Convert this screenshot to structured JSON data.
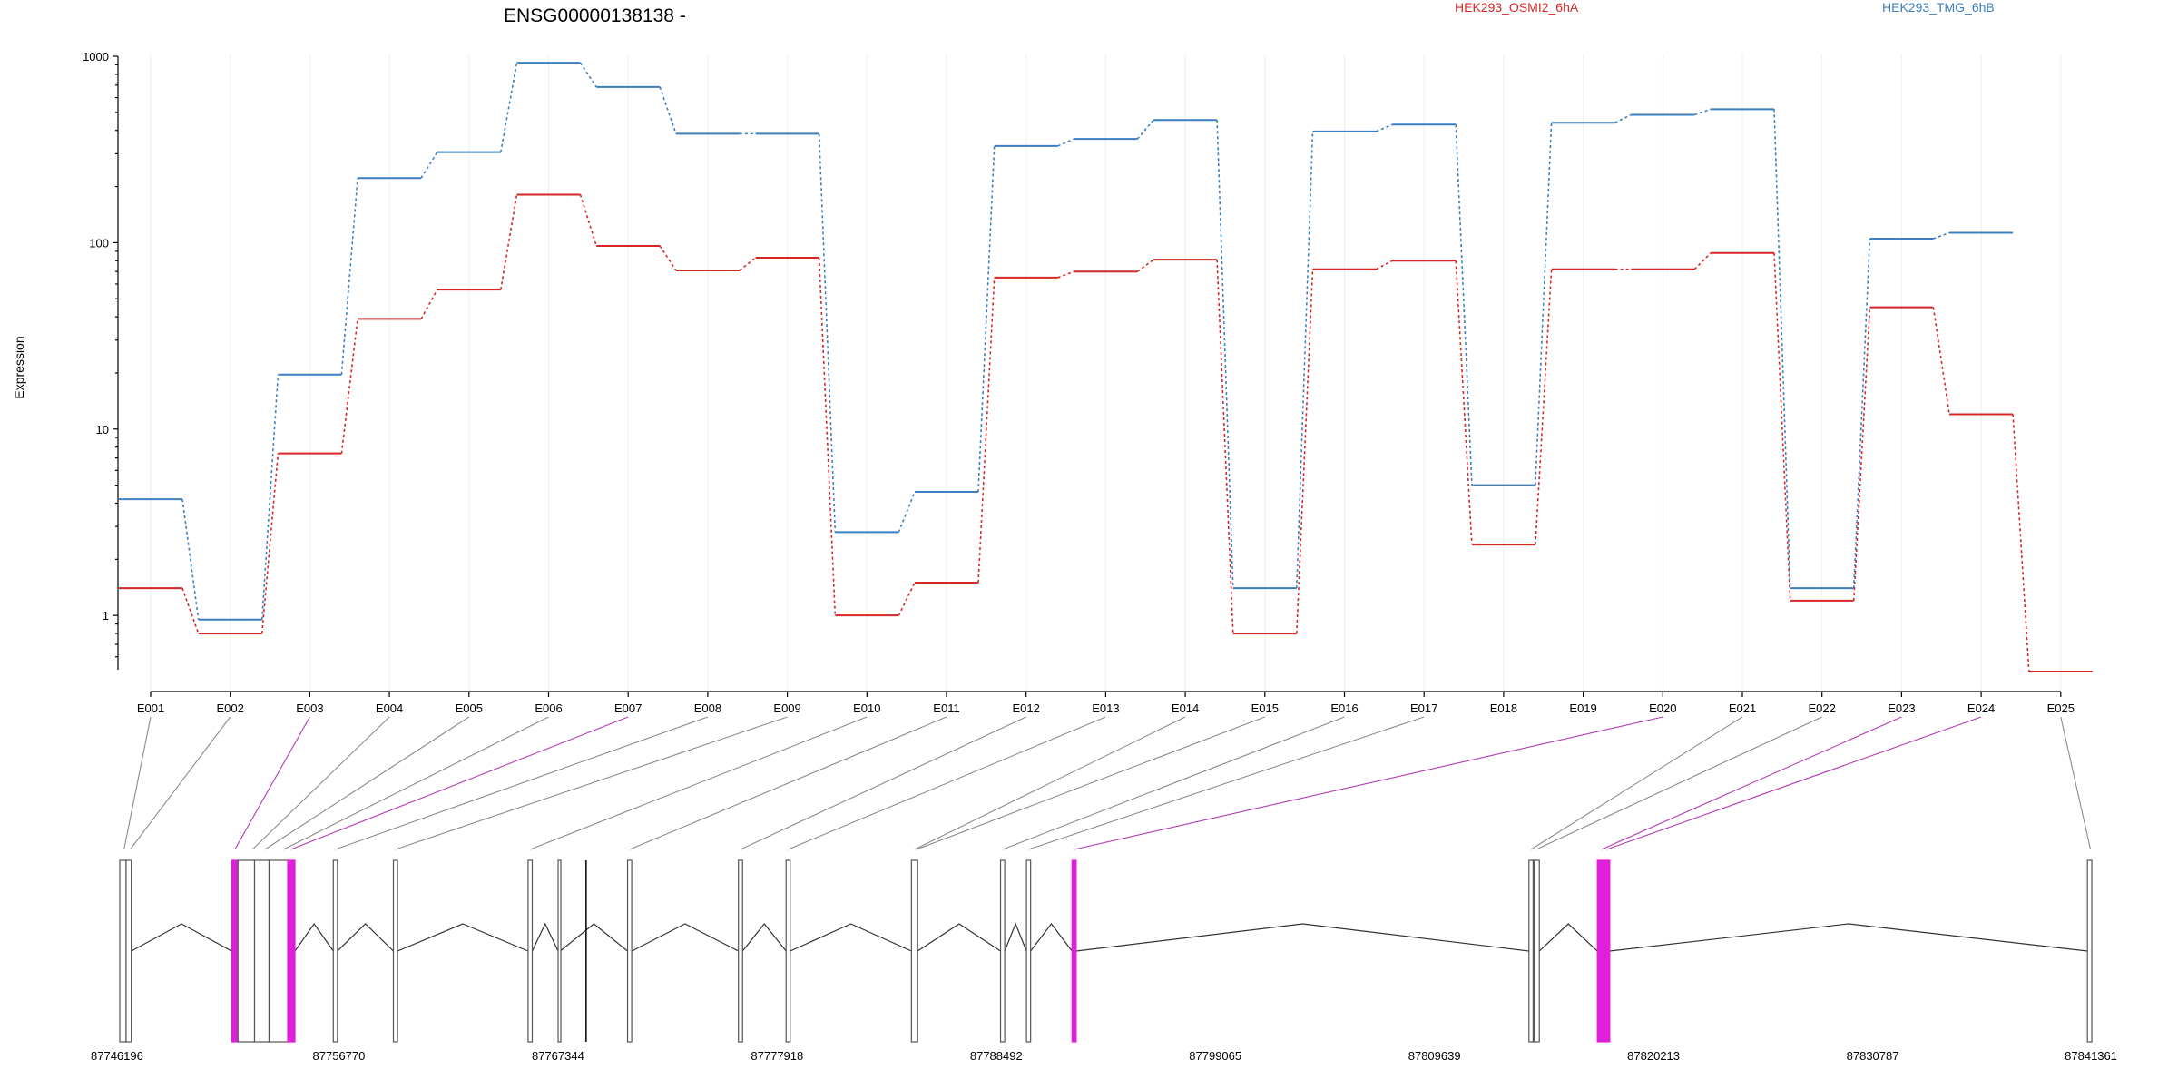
{
  "chart_data": {
    "type": "line",
    "title": "ENSG00000138138 -",
    "xlabel": "",
    "ylabel": "Expression",
    "y_scale": "log",
    "ylim": [
      0.5,
      1000
    ],
    "y_ticks": [
      {
        "value": 1,
        "label": "1"
      },
      {
        "value": 10,
        "label": "10"
      },
      {
        "value": 100,
        "label": "100"
      },
      {
        "value": 1000,
        "label": "1000"
      }
    ],
    "categories": [
      "E001",
      "E002",
      "E003",
      "E004",
      "E005",
      "E006",
      "E007",
      "E008",
      "E009",
      "E010",
      "E011",
      "E012",
      "E013",
      "E014",
      "E015",
      "E016",
      "E017",
      "E018",
      "E019",
      "E020",
      "E021",
      "E022",
      "E023",
      "E024",
      "E025"
    ],
    "series": [
      {
        "name": "HEK293_OSMI2_6hA",
        "color": "#d62728",
        "values": [
          1.4,
          0.8,
          7.4,
          39,
          56,
          181,
          96,
          71,
          83,
          1.0,
          1.5,
          65,
          70,
          81,
          0.8,
          72,
          80,
          2.4,
          72,
          72,
          88,
          1.2,
          45,
          12,
          0.5
        ]
      },
      {
        "name": "HEK293_TMG_6hB",
        "color": "#3b7fbf",
        "values": [
          4.2,
          0.95,
          19.6,
          222,
          306,
          923,
          684,
          384,
          384,
          2.8,
          4.6,
          330,
          360,
          455,
          1.4,
          395,
          430,
          5.0,
          440,
          485,
          520,
          1.4,
          105,
          113,
          null
        ]
      }
    ],
    "legend_position": "top-right",
    "gene_model": {
      "coordinates": [
        "87746196",
        "87756770",
        "87767344",
        "87777918",
        "87788492",
        "87799065",
        "87809639",
        "87820213",
        "87830787",
        "87841361"
      ],
      "exons": [
        {
          "id": "E001",
          "start": 87746196,
          "end": 87746500,
          "highlight": false
        },
        {
          "id": "E002",
          "start": 87746500,
          "end": 87746750,
          "highlight": false
        },
        {
          "id": "E003",
          "start": 87751600,
          "end": 87751900,
          "highlight": true
        },
        {
          "id": "E004",
          "start": 87751900,
          "end": 87752700,
          "highlight": false
        },
        {
          "id": "E005",
          "start": 87752700,
          "end": 87753400,
          "highlight": false
        },
        {
          "id": "E006",
          "start": 87753400,
          "end": 87754300,
          "highlight": false
        },
        {
          "id": "E007",
          "start": 87754300,
          "end": 87754650,
          "highlight": true
        },
        {
          "id": "E008",
          "start": 87756500,
          "end": 87756700,
          "highlight": false
        },
        {
          "id": "E009",
          "start": 87759400,
          "end": 87759600,
          "highlight": false
        },
        {
          "id": "E010",
          "start": 87765900,
          "end": 87766100,
          "highlight": false
        },
        {
          "id": "E011",
          "start": 87767350,
          "end": 87767450,
          "highlight": false
        },
        {
          "id": "E012",
          "start": 87770700,
          "end": 87770900,
          "highlight": false
        },
        {
          "id": "E013",
          "start": 87776050,
          "end": 87776250,
          "highlight": false
        },
        {
          "id": "E014",
          "start": 87778350,
          "end": 87778550,
          "highlight": false
        },
        {
          "id": "E015",
          "start": 87784400,
          "end": 87784700,
          "highlight": false
        },
        {
          "id": "E016",
          "start": 87788700,
          "end": 87788900,
          "highlight": false
        },
        {
          "id": "E017",
          "start": 87789950,
          "end": 87790150,
          "highlight": false
        },
        {
          "id": "E018",
          "start": 87792150,
          "end": 87792350,
          "highlight": true
        },
        {
          "id": "E019",
          "start": 87814200,
          "end": 87814400,
          "highlight": false
        },
        {
          "id": "E020",
          "start": 87814450,
          "end": 87814700,
          "highlight": false
        },
        {
          "id": "E021",
          "start": 87817500,
          "end": 87817850,
          "highlight": true
        },
        {
          "id": "E022",
          "start": 87817850,
          "end": 87818100,
          "highlight": true
        },
        {
          "id": "E023",
          "start": 87841150,
          "end": 87841361,
          "highlight": false
        }
      ],
      "shaded_region": [
        87752000,
        87754300
      ],
      "extra_marks": [
        87768700
      ],
      "connectors": [
        {
          "category": "E001",
          "position": 87746400,
          "highlight": false
        },
        {
          "category": "E002",
          "position": 87746700,
          "highlight": false
        },
        {
          "category": "E003",
          "position": 87751750,
          "highlight": true
        },
        {
          "category": "E004",
          "position": 87752600,
          "highlight": false
        },
        {
          "category": "E005",
          "position": 87753200,
          "highlight": false
        },
        {
          "category": "E006",
          "position": 87754100,
          "highlight": false
        },
        {
          "category": "E007",
          "position": 87754450,
          "highlight": true
        },
        {
          "category": "E008",
          "position": 87756600,
          "highlight": false
        },
        {
          "category": "E009",
          "position": 87759500,
          "highlight": false
        },
        {
          "category": "E010",
          "position": 87766000,
          "highlight": false
        },
        {
          "category": "E011",
          "position": 87770800,
          "highlight": false
        },
        {
          "category": "E012",
          "position": 87776150,
          "highlight": false
        },
        {
          "category": "E013",
          "position": 87778450,
          "highlight": false
        },
        {
          "category": "E014",
          "position": 87784550,
          "highlight": false
        },
        {
          "category": "E015",
          "position": 87784650,
          "highlight": false
        },
        {
          "category": "E016",
          "position": 87788800,
          "highlight": false
        },
        {
          "category": "E017",
          "position": 87790050,
          "highlight": false
        },
        {
          "category": "E020",
          "position": 87792250,
          "highlight": true
        },
        {
          "category": "E021",
          "position": 87814300,
          "highlight": false
        },
        {
          "category": "E022",
          "position": 87814550,
          "highlight": false
        },
        {
          "category": "E023",
          "position": 87817700,
          "highlight": true
        },
        {
          "category": "E024",
          "position": 87817950,
          "highlight": true
        },
        {
          "category": "E025",
          "position": 87841300,
          "highlight": false
        }
      ]
    }
  }
}
